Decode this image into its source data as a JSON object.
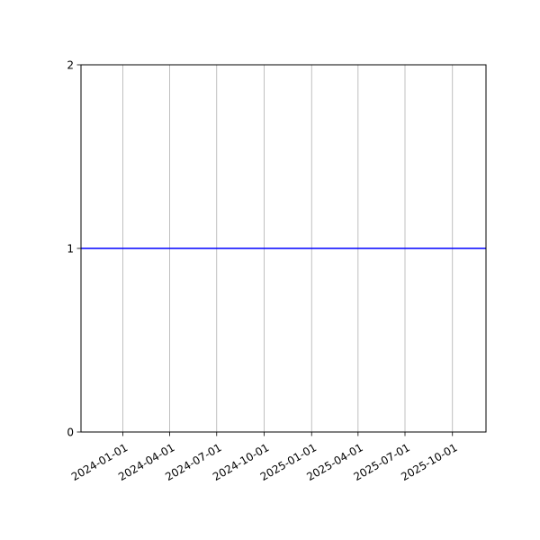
{
  "chart_data": {
    "type": "line",
    "title": "",
    "xlabel": "",
    "ylabel": "",
    "xlim": [
      "2023-10-12",
      "2025-12-05"
    ],
    "ylim": [
      0,
      2
    ],
    "x_ticks": [
      "2024-01-01",
      "2024-04-01",
      "2024-07-01",
      "2024-10-01",
      "2025-01-01",
      "2025-04-01",
      "2025-07-01",
      "2025-10-01"
    ],
    "y_ticks": [
      "0",
      "1",
      "2"
    ],
    "grid": {
      "x": true,
      "y": false
    },
    "series": [
      {
        "x": [
          "2023-10-12",
          "2025-12-05"
        ],
        "y": [
          1,
          1
        ],
        "color": "#0000ff"
      }
    ]
  }
}
